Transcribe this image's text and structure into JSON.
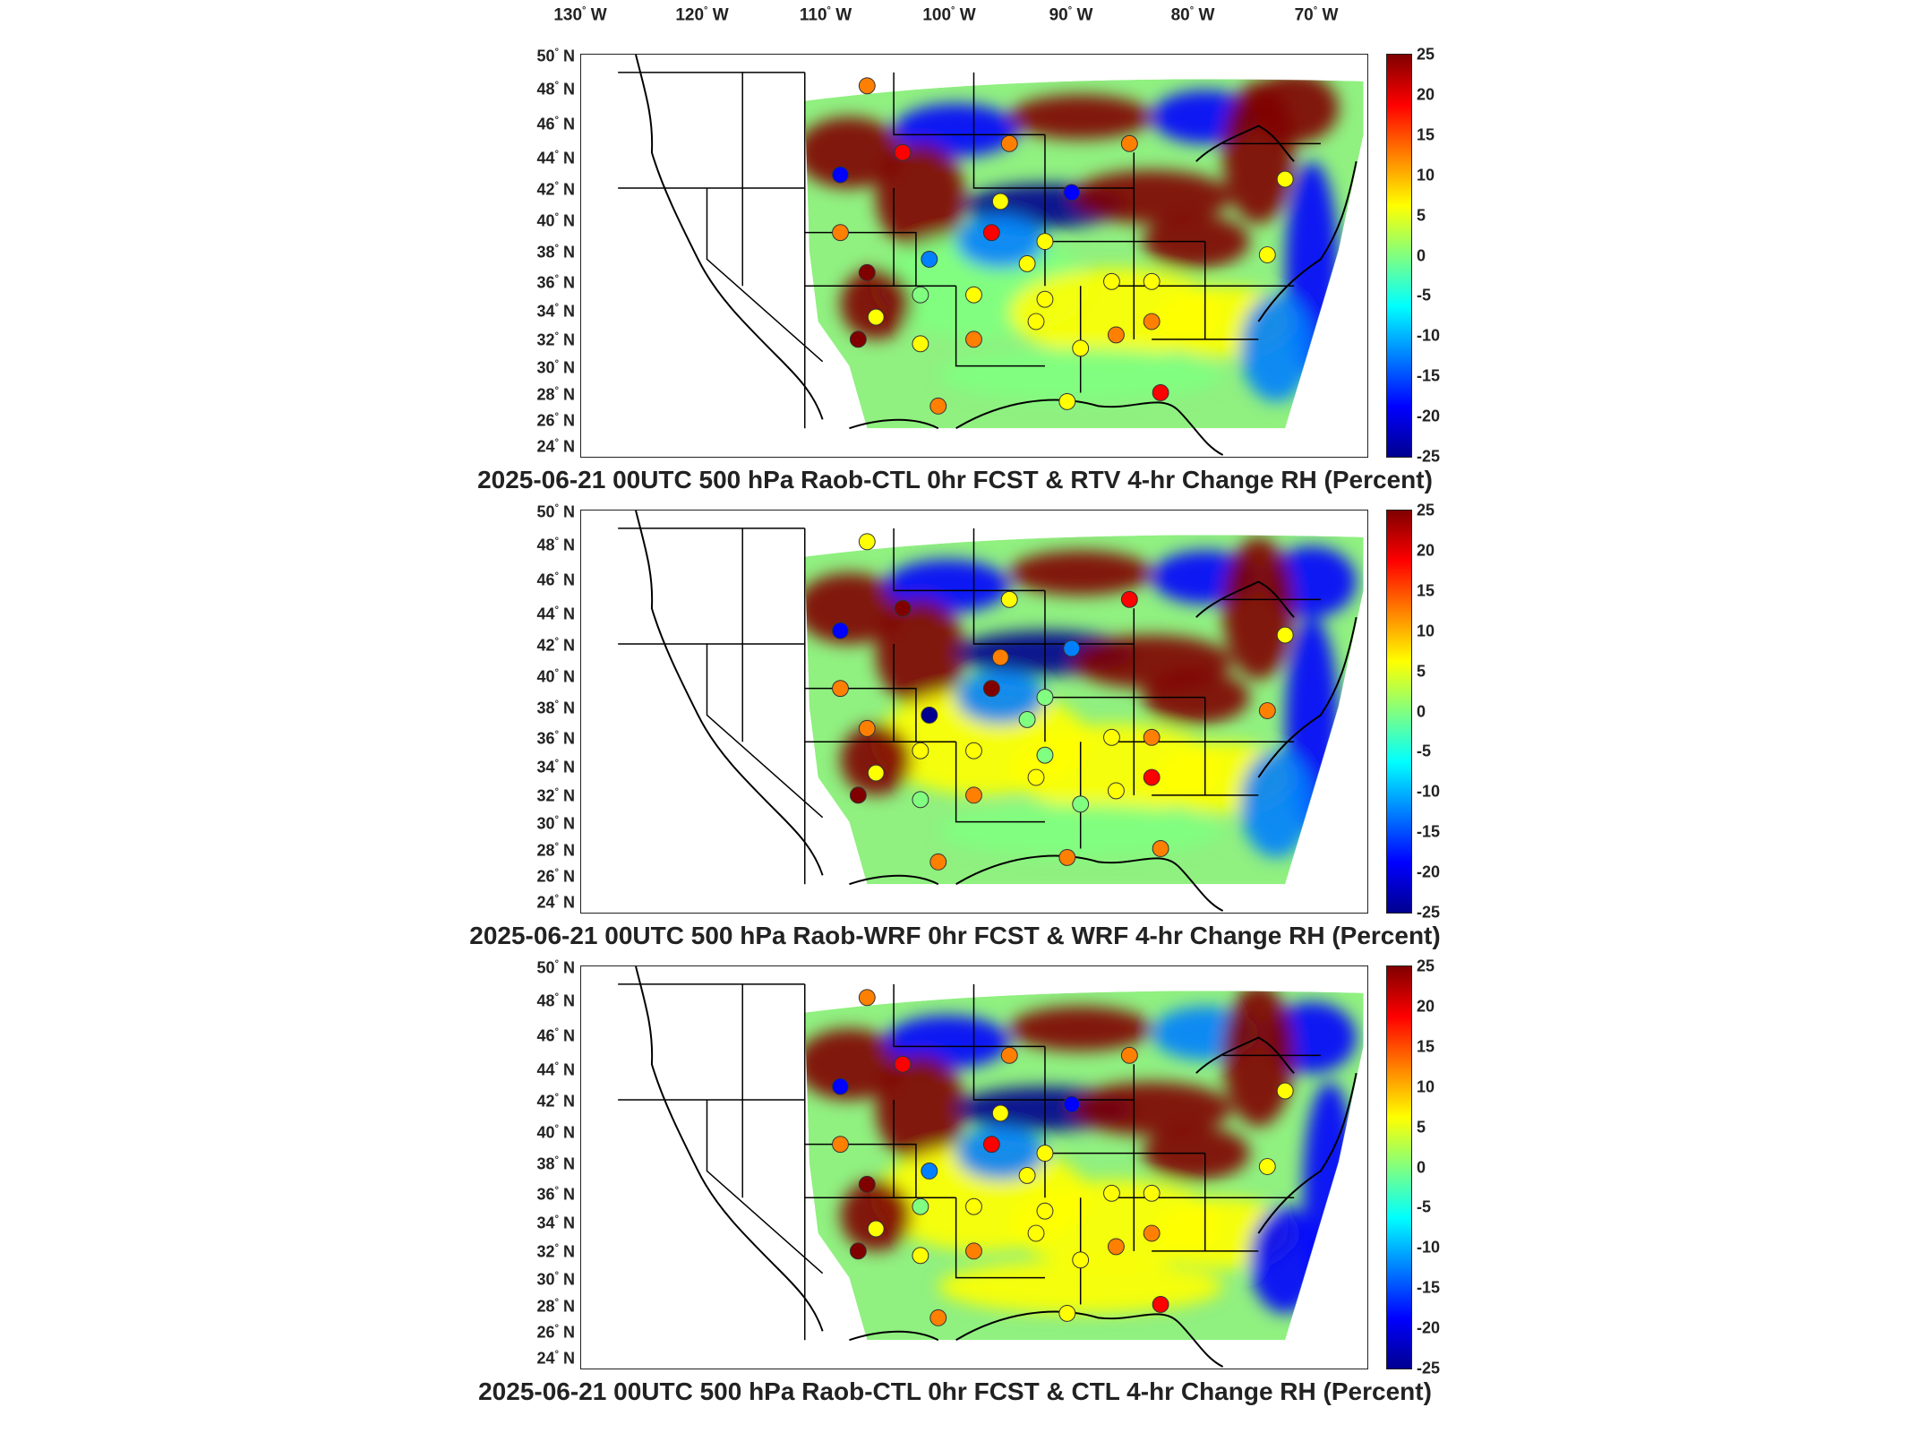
{
  "longitude_labels": [
    {
      "deg": "130",
      "hem": "W"
    },
    {
      "deg": "120",
      "hem": "W"
    },
    {
      "deg": "110",
      "hem": "W"
    },
    {
      "deg": "100",
      "hem": "W"
    },
    {
      "deg": "90",
      "hem": "W"
    },
    {
      "deg": "80",
      "hem": "W"
    },
    {
      "deg": "70",
      "hem": "W"
    }
  ],
  "latitude_labels": [
    "50",
    "48",
    "46",
    "44",
    "42",
    "40",
    "38",
    "36",
    "34",
    "32",
    "30",
    "28",
    "26",
    "24"
  ],
  "latitude_hemisphere": "N",
  "colorbar": {
    "ticks": [
      "25",
      "20",
      "15",
      "10",
      "5",
      "0",
      "-5",
      "-10",
      "-15",
      "-20",
      "-25"
    ],
    "range": [
      -25,
      25
    ],
    "colors": [
      "#00008f",
      "#0000ff",
      "#0080ff",
      "#00ffff",
      "#80ff80",
      "#ffff00",
      "#ff8000",
      "#ff0000",
      "#800000"
    ]
  },
  "panels": [
    {
      "caption": "2025-06-21 00UTC 500 hPa Raob-CTL 0hr FCST & RTV 4-hr Change RH (Percent)"
    },
    {
      "caption": "2025-06-21 00UTC 500 hPa Raob-WRF 0hr FCST & WRF 4-hr Change RH (Percent)"
    },
    {
      "caption": "2025-06-21 00UTC 500 hPa Raob-CTL 0hr FCST & CTL 4-hr Change RH (Percent)"
    }
  ]
}
